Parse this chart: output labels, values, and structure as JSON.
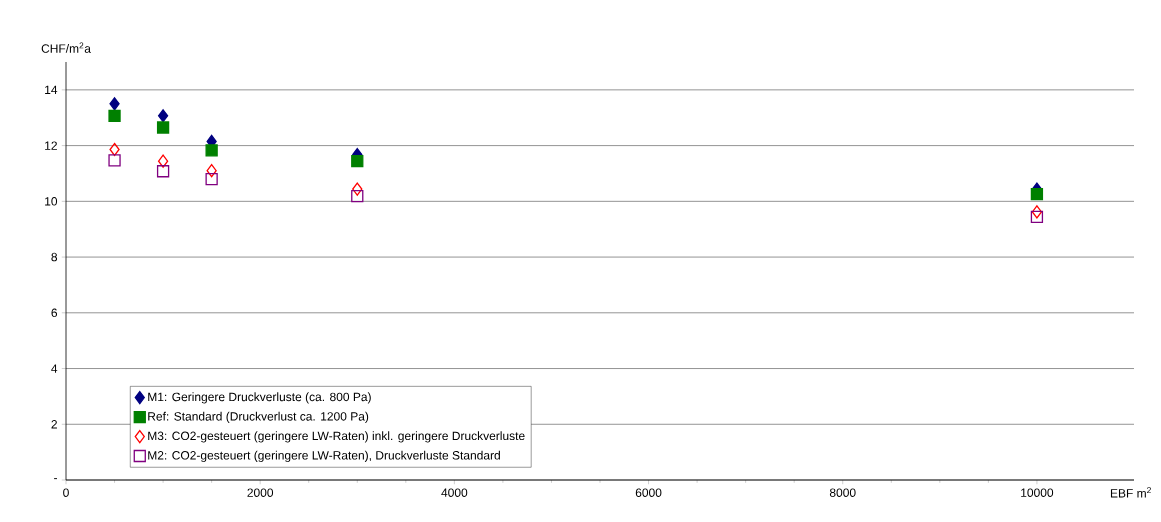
{
  "chart_data": {
    "type": "scatter",
    "xlabel": "EBF m$^{2}$",
    "ylabel": "CHF/m$^{2}$a",
    "x": [
      500,
      1000,
      1500,
      3000,
      10000
    ],
    "series": [
      {
        "name": "M1: Geringere Druckverluste (ca. 800 Pa)",
        "color": "#000080",
        "marker": "diamond",
        "values": [
          13.5,
          13.07,
          12.15,
          11.68,
          10.44
        ]
      },
      {
        "name": "Ref: Standard (Druckverlust ca. 1200 Pa)",
        "color": "#008000",
        "marker": "square",
        "values": [
          13.07,
          12.65,
          11.83,
          11.44,
          10.26
        ]
      },
      {
        "name": "M3: CO2-gesteuert (geringere LW-Raten) inkl. geringere Druckverluste",
        "color": "#ff0000",
        "marker": "diamond open",
        "values": [
          11.86,
          11.44,
          11.1,
          10.44,
          9.62
        ]
      },
      {
        "name": "M2: CO2-gesteuert (geringere LW-Raten), Druckverluste Standard",
        "color": "#800080",
        "marker": "square open",
        "values": [
          11.47,
          11.08,
          10.8,
          10.19,
          9.44
        ]
      }
    ],
    "xlim": [
      0,
      11000
    ],
    "ylim": [
      0,
      15
    ],
    "xticks": [
      0,
      2000,
      4000,
      6000,
      8000,
      10000
    ],
    "yticks": [
      {
        "value": 0,
        "label": "-"
      },
      2,
      4,
      6,
      8,
      10,
      12,
      14
    ],
    "grid": "y",
    "legend": "bottom left"
  }
}
